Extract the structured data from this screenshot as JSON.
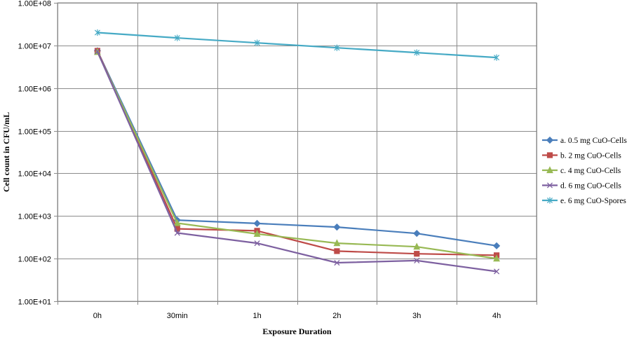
{
  "chart_data": {
    "type": "line",
    "xlabel": "Exposure Duration",
    "ylabel": "Cell count in CFU/mL",
    "y_scale": "log",
    "ylim": [
      10,
      100000000
    ],
    "y_ticks": [
      {
        "value": 10,
        "label": "1.00E+01"
      },
      {
        "value": 100,
        "label": "1.00E+02"
      },
      {
        "value": 1000,
        "label": "1.00E+03"
      },
      {
        "value": 10000,
        "label": "1.00E+04"
      },
      {
        "value": 100000,
        "label": "1.00E+05"
      },
      {
        "value": 1000000,
        "label": "1.00E+06"
      },
      {
        "value": 10000000,
        "label": "1.00E+07"
      },
      {
        "value": 100000000,
        "label": "1.00E+08"
      }
    ],
    "categories": [
      "0h",
      "30min",
      "1h",
      "2h",
      "3h",
      "4h"
    ],
    "grid": true,
    "legend_position": "right",
    "series": [
      {
        "name": "a. 0.5 mg CuO-Cells",
        "color": "#4a7ebb",
        "marker": "diamond",
        "values": [
          7500000,
          800,
          670,
          550,
          390,
          200
        ]
      },
      {
        "name": "b. 2 mg CuO-Cells",
        "color": "#be4b48",
        "marker": "square",
        "values": [
          7500000,
          500,
          450,
          150,
          130,
          120
        ]
      },
      {
        "name": "c. 4 mg CuO-Cells",
        "color": "#98b954",
        "marker": "triangle",
        "values": [
          7000000,
          680,
          380,
          230,
          190,
          100
        ]
      },
      {
        "name": "d. 6 mg CuO-Cells",
        "color": "#7d60a0",
        "marker": "x",
        "values": [
          7200000,
          400,
          230,
          80,
          90,
          50
        ]
      },
      {
        "name": "e. 6 mg CuO-Spores",
        "color": "#46aac5",
        "marker": "star",
        "values": [
          20000000,
          15000000,
          11500000,
          8800000,
          6800000,
          5200000
        ]
      }
    ]
  }
}
